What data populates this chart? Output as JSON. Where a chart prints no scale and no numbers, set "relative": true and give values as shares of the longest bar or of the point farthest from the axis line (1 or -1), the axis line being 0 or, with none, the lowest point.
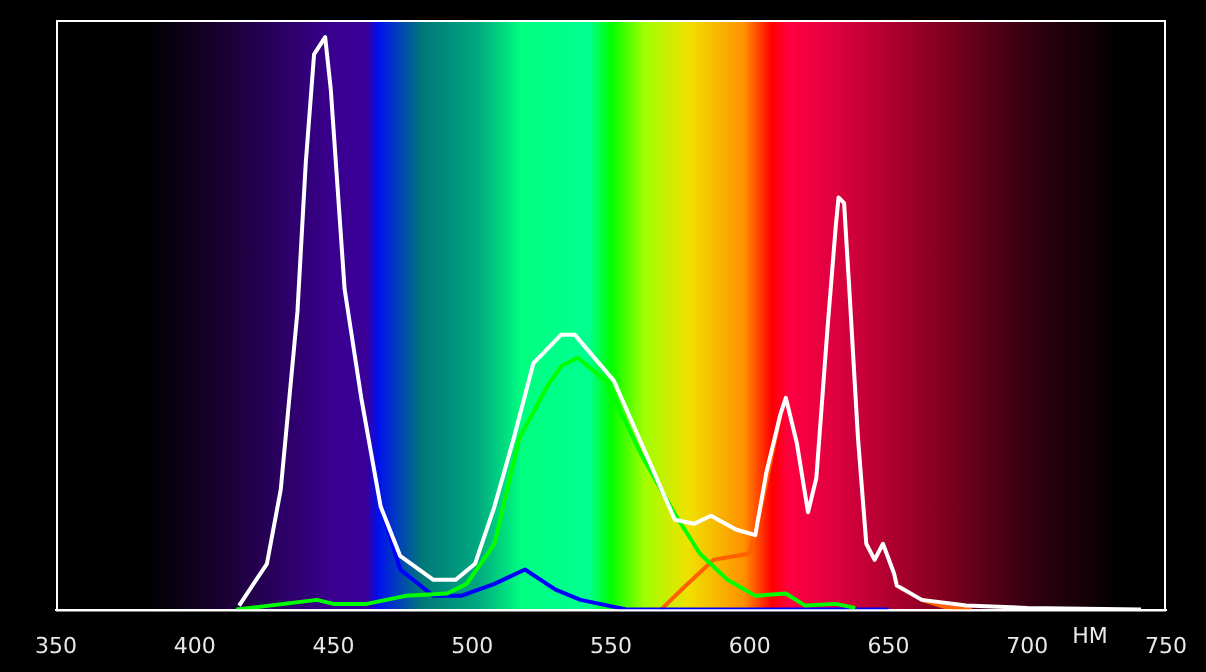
{
  "chart_data": {
    "type": "line",
    "xlabel": "НМ",
    "relative": true,
    "xlim": [
      350,
      750
    ],
    "xticks": [
      350,
      400,
      450,
      500,
      550,
      600,
      650,
      700,
      750
    ],
    "grid": false,
    "legend": false,
    "marker": "none",
    "line_style": "solid",
    "series": [
      {
        "color": "#ffffff",
        "x": [
          416,
          426,
          431,
          437,
          440,
          443,
          447,
          449,
          454,
          460,
          467,
          474,
          486,
          494,
          501,
          508,
          515,
          522,
          532,
          537,
          551,
          561,
          573,
          580,
          586,
          595,
          602,
          606,
          611,
          613,
          617,
          621,
          624,
          628,
          631,
          632,
          634,
          636,
          639,
          642,
          645,
          648,
          652,
          653,
          662,
          678,
          700,
          741
        ],
        "values": [
          0.007,
          0.08,
          0.21,
          0.52,
          0.78,
          0.97,
          1.0,
          0.91,
          0.56,
          0.37,
          0.18,
          0.094,
          0.052,
          0.052,
          0.08,
          0.18,
          0.3,
          0.43,
          0.48,
          0.48,
          0.4,
          0.29,
          0.157,
          0.15,
          0.164,
          0.14,
          0.13,
          0.24,
          0.34,
          0.37,
          0.29,
          0.17,
          0.23,
          0.49,
          0.67,
          0.72,
          0.71,
          0.55,
          0.3,
          0.115,
          0.087,
          0.115,
          0.063,
          0.042,
          0.017,
          0.007,
          0.003,
          0
        ]
      },
      {
        "color": "#00ff00",
        "x": [
          415,
          444,
          450,
          462,
          476,
          491,
          498,
          508,
          517,
          527,
          532,
          538,
          548,
          561,
          573,
          582,
          592,
          602,
          613,
          620,
          631,
          638
        ],
        "values": [
          0,
          0.017,
          0.01,
          0.01,
          0.024,
          0.028,
          0.045,
          0.115,
          0.3,
          0.39,
          0.425,
          0.44,
          0.4,
          0.27,
          0.167,
          0.098,
          0.052,
          0.024,
          0.028,
          0.007,
          0.01,
          0.003
        ]
      },
      {
        "color": "#0000ff",
        "x": [
          454,
          460,
          467,
          474,
          486,
          496,
          508,
          519,
          530,
          539,
          556,
          650
        ],
        "values": [
          0.56,
          0.37,
          0.18,
          0.07,
          0.024,
          0.024,
          0.045,
          0.07,
          0.035,
          0.017,
          0,
          0
        ]
      },
      {
        "color": "#ff6000",
        "x": [
          568,
          577,
          587,
          600,
          605,
          611,
          613,
          617,
          621,
          624,
          628,
          631,
          632,
          634,
          636,
          639,
          642,
          645,
          648,
          652,
          653,
          662,
          670,
          680
        ],
        "values": [
          0,
          0.042,
          0.087,
          0.098,
          0.2,
          0.34,
          null,
          null,
          null,
          null,
          null,
          null,
          null,
          null,
          null,
          null,
          null,
          null,
          null,
          null,
          null,
          0.017,
          0.005,
          0
        ]
      }
    ]
  }
}
